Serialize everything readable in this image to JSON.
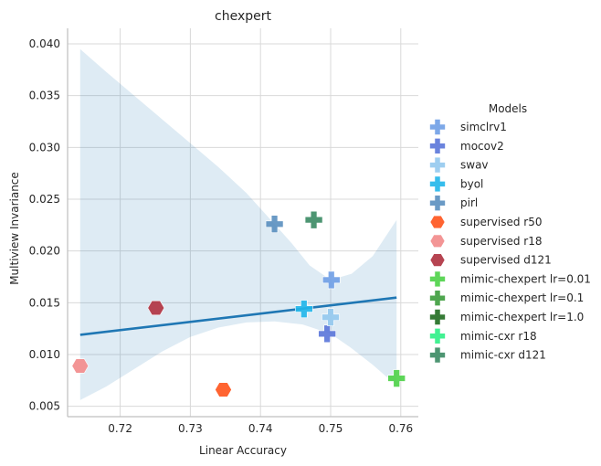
{
  "chart_data": {
    "type": "scatter",
    "title": "chexpert",
    "xlabel": "Linear Accuracy",
    "ylabel": "Multiview Invariance",
    "xlim": [
      0.7125,
      0.7625
    ],
    "ylim": [
      0.004,
      0.0415
    ],
    "x_ticks": [
      0.72,
      0.73,
      0.74,
      0.75,
      0.76
    ],
    "x_tick_labels": [
      "0.72",
      "0.73",
      "0.74",
      "0.75",
      "0.76"
    ],
    "y_ticks": [
      0.005,
      0.01,
      0.015,
      0.02,
      0.025,
      0.03,
      0.035,
      0.04
    ],
    "y_tick_labels": [
      "0.005",
      "0.010",
      "0.015",
      "0.020",
      "0.025",
      "0.030",
      "0.035",
      "0.040"
    ],
    "grid": true,
    "legend_title": "Models",
    "legend_position": "right",
    "series": [
      {
        "name": "simclrv1",
        "marker": "plus",
        "color": "#6f9fe6",
        "points": [
          [
            0.7501,
            0.0172
          ]
        ]
      },
      {
        "name": "mocov2",
        "marker": "plus",
        "color": "#5a75d9",
        "points": [
          [
            0.7495,
            0.012
          ]
        ]
      },
      {
        "name": "swav",
        "marker": "plus",
        "color": "#93c9ee",
        "points": [
          [
            0.75,
            0.0136
          ]
        ]
      },
      {
        "name": "byol",
        "marker": "plus",
        "color": "#20b6ea",
        "points": [
          [
            0.7462,
            0.0144
          ]
        ]
      },
      {
        "name": "pirl",
        "marker": "plus",
        "color": "#5a8fbf",
        "points": [
          [
            0.742,
            0.0226
          ]
        ]
      },
      {
        "name": "supervised r50",
        "marker": "hexagon",
        "color": "#ff5c26",
        "points": [
          [
            0.7347,
            0.0066
          ]
        ]
      },
      {
        "name": "supervised r18",
        "marker": "hexagon",
        "color": "#f28f8f",
        "points": [
          [
            0.7143,
            0.0089
          ]
        ]
      },
      {
        "name": "supervised d121",
        "marker": "hexagon",
        "color": "#b23a48",
        "points": [
          [
            0.7251,
            0.0145
          ]
        ]
      },
      {
        "name": "mimic-chexpert lr=0.01",
        "marker": "plus",
        "color": "#4cd147",
        "points": [
          [
            0.7594,
            0.0077
          ]
        ]
      },
      {
        "name": "mimic-chexpert lr=0.1",
        "marker": "plus",
        "color": "#3c9c3c",
        "points": []
      },
      {
        "name": "mimic-chexpert lr=1.0",
        "marker": "plus",
        "color": "#1f6b1f",
        "points": []
      },
      {
        "name": "mimic-cxr r18",
        "marker": "plus",
        "color": "#2ef086",
        "points": []
      },
      {
        "name": "mimic-cxr d121",
        "marker": "plus",
        "color": "#3a8a63",
        "points": [
          [
            0.7476,
            0.023
          ]
        ]
      }
    ],
    "regression": {
      "color": "#1f77b4",
      "band_color": "#1f77b4",
      "line": [
        [
          0.7143,
          0.0119
        ],
        [
          0.7594,
          0.0155
        ]
      ],
      "band_upper": [
        [
          0.7143,
          0.0395
        ],
        [
          0.718,
          0.0373
        ],
        [
          0.722,
          0.035
        ],
        [
          0.726,
          0.0327
        ],
        [
          0.73,
          0.0304
        ],
        [
          0.734,
          0.0281
        ],
        [
          0.738,
          0.0256
        ],
        [
          0.742,
          0.0226
        ],
        [
          0.7445,
          0.0207
        ],
        [
          0.747,
          0.0186
        ],
        [
          0.75,
          0.0172
        ],
        [
          0.753,
          0.0178
        ],
        [
          0.756,
          0.0195
        ],
        [
          0.7594,
          0.023
        ]
      ],
      "band_lower": [
        [
          0.7143,
          0.0056
        ],
        [
          0.718,
          0.0069
        ],
        [
          0.722,
          0.0086
        ],
        [
          0.726,
          0.0103
        ],
        [
          0.73,
          0.0117
        ],
        [
          0.734,
          0.0126
        ],
        [
          0.738,
          0.0131
        ],
        [
          0.742,
          0.0132
        ],
        [
          0.746,
          0.0129
        ],
        [
          0.75,
          0.012
        ],
        [
          0.753,
          0.0106
        ],
        [
          0.756,
          0.009
        ],
        [
          0.7594,
          0.007
        ]
      ]
    }
  }
}
